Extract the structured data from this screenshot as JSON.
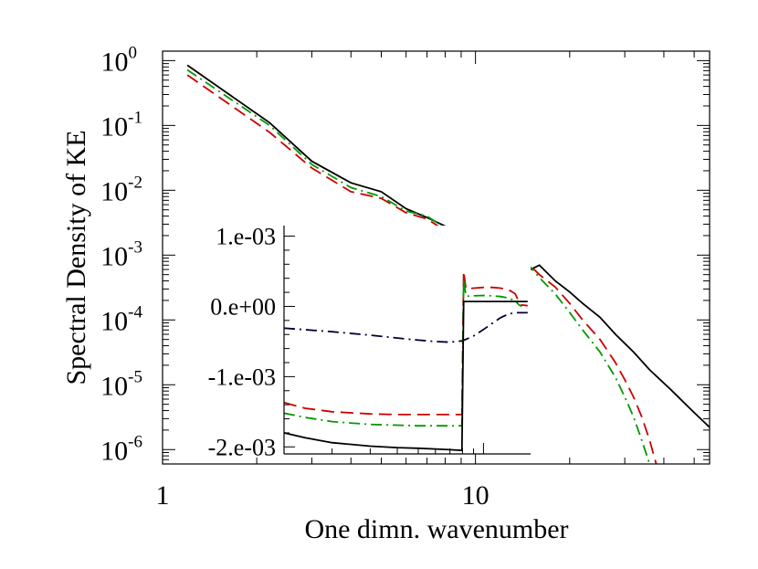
{
  "chart_data": [
    {
      "type": "line",
      "xlabel": "One dimn. wavenumber",
      "ylabel": "Spectral Density of KE",
      "xscale": "log",
      "yscale": "log",
      "xlim": [
        1,
        56
      ],
      "ylim": [
        6e-07,
        1.4
      ],
      "xticks": [
        {
          "value": 1,
          "label": "1"
        },
        {
          "value": 10,
          "label": "10"
        }
      ],
      "yticks": [
        {
          "value": 1,
          "base": "10",
          "exp": "0"
        },
        {
          "value": 0.1,
          "base": "10",
          "exp": "-1"
        },
        {
          "value": 0.01,
          "base": "10",
          "exp": "-2"
        },
        {
          "value": 0.001,
          "base": "10",
          "exp": "-3"
        },
        {
          "value": 0.0001,
          "base": "10",
          "exp": "-4"
        },
        {
          "value": 1e-05,
          "base": "10",
          "exp": "-5"
        },
        {
          "value": 1e-06,
          "base": "10",
          "exp": "-6"
        }
      ],
      "grid": false,
      "legend": "none",
      "series": [
        {
          "color": "#000000",
          "dash": "solid",
          "x": [
            1.2,
            2.2,
            3.0,
            4.0,
            5.0,
            6.0,
            7.0,
            8.0,
            10.0,
            12.0,
            14.0,
            15.0,
            16.0,
            18.0,
            20.0,
            22.0,
            25.0,
            28.0,
            32.0,
            36.0,
            42.0,
            48.0,
            56.0
          ],
          "y": [
            0.85,
            0.11,
            0.028,
            0.013,
            0.0095,
            0.0052,
            0.0038,
            0.0028,
            0.0018,
            0.0011,
            0.00095,
            0.0006,
            0.0007,
            0.0004,
            0.00027,
            0.00018,
            0.00011,
            6e-05,
            3.2e-05,
            1.7e-05,
            8.5e-06,
            4.5e-06,
            2.2e-06
          ]
        },
        {
          "color": "#cc0000",
          "dash": "dashed",
          "x": [
            1.2,
            2.2,
            3.0,
            4.0,
            5.0,
            6.0,
            7.0,
            8.0,
            10.0,
            12.0,
            14.0,
            15.0,
            16.0,
            18.0,
            20.0,
            22.0,
            25.0,
            28.0,
            30.0,
            32.0,
            34.0,
            36.0,
            38.0
          ],
          "y": [
            0.6,
            0.078,
            0.022,
            0.0095,
            0.0075,
            0.0045,
            0.0036,
            0.0024,
            0.0016,
            0.001,
            0.0009,
            0.00068,
            0.0005,
            0.00032,
            0.00018,
            0.0001,
            5e-05,
            2.2e-05,
            1.2e-05,
            6.5e-06,
            3.2e-06,
            1.4e-06,
            5.5e-07
          ]
        },
        {
          "color": "#009900",
          "dash": "dashdot",
          "x": [
            1.2,
            2.2,
            3.0,
            4.0,
            5.0,
            6.0,
            7.0,
            8.0,
            10.0,
            12.0,
            14.0,
            15.0,
            16.0,
            18.0,
            20.0,
            22.0,
            25.0,
            28.0,
            30.0,
            32.0,
            34.0,
            36.0
          ],
          "y": [
            0.72,
            0.1,
            0.025,
            0.011,
            0.008,
            0.0048,
            0.004,
            0.0026,
            0.0019,
            0.0011,
            0.00085,
            0.00065,
            0.00045,
            0.00025,
            0.00013,
            7e-05,
            3.2e-05,
            1.3e-05,
            6.5e-06,
            3.2e-06,
            1.4e-06,
            6e-07
          ]
        }
      ]
    },
    {
      "type": "line",
      "inset": true,
      "xscale": "log",
      "xlim": [
        1.2,
        16.5
      ],
      "ylim": [
        -0.0021,
        0.00115
      ],
      "yticks": [
        {
          "value": 0.001,
          "label": "1.e-03"
        },
        {
          "value": 0.0,
          "label": "0.e+00"
        },
        {
          "value": -0.001,
          "label": "-1.e-03"
        },
        {
          "value": -0.002,
          "label": "-2.e-03"
        }
      ],
      "series": [
        {
          "color": "#000033",
          "dash": "dashdot",
          "x": [
            1.2,
            2.0,
            3.0,
            4.0,
            5.0,
            6.0,
            7.0,
            8.0,
            9.0,
            10.0,
            11.0,
            12.0,
            13.0,
            14.0,
            15.0,
            16.0
          ],
          "y": [
            -0.00031,
            -0.00036,
            -0.00041,
            -0.00045,
            -0.00048,
            -0.0005,
            -0.00051,
            -0.00049,
            -0.00042,
            -0.00033,
            -0.00024,
            -0.00016,
            -0.00011,
            -9e-05,
            -9e-05,
            -9e-05
          ]
        },
        {
          "color": "#cc0000",
          "dash": "dashed",
          "x": [
            1.2,
            1.5,
            2.0,
            3.0,
            4.0,
            5.0,
            6.0,
            7.0,
            7.95,
            8.1,
            8.3,
            9.0,
            10.0,
            11.0,
            12.0,
            13.0,
            14.0,
            14.6,
            15.0,
            16.0
          ],
          "y": [
            -0.00137,
            -0.00145,
            -0.0015,
            -0.00153,
            -0.00154,
            -0.00154,
            -0.00154,
            -0.00154,
            -0.00154,
            0.0005,
            0.00025,
            0.00026,
            0.00027,
            0.00027,
            0.00026,
            0.00024,
            0.00018,
            6e-05,
            2e-05,
            1e-05
          ]
        },
        {
          "color": "#009900",
          "dash": "dashdot",
          "x": [
            1.2,
            1.5,
            2.0,
            3.0,
            4.0,
            5.0,
            6.0,
            7.0,
            7.95,
            8.1,
            8.3,
            9.0,
            10.0,
            11.0,
            12.0,
            13.0,
            14.0,
            14.6,
            15.0
          ],
          "y": [
            -0.00152,
            -0.00158,
            -0.00164,
            -0.00168,
            -0.00169,
            -0.0017,
            -0.0017,
            -0.0017,
            -0.0017,
            0.00039,
            0.000145,
            0.00015,
            0.000155,
            0.00015,
            0.00014,
            0.00012,
            8e-05,
            2e-05,
            0.0
          ]
        },
        {
          "color": "#000000",
          "dash": "solid",
          "x": [
            1.2,
            1.5,
            2.0,
            3.0,
            4.0,
            5.0,
            6.0,
            7.0,
            7.95,
            8.1,
            9.0,
            10.0,
            12.0,
            14.0,
            16.0
          ],
          "y": [
            -0.0018,
            -0.00187,
            -0.00194,
            -0.00199,
            -0.00201,
            -0.00202,
            -0.00203,
            -0.00204,
            -0.00205,
            7e-05,
            7e-05,
            7e-05,
            7e-05,
            7e-05,
            7e-05
          ]
        }
      ]
    }
  ]
}
